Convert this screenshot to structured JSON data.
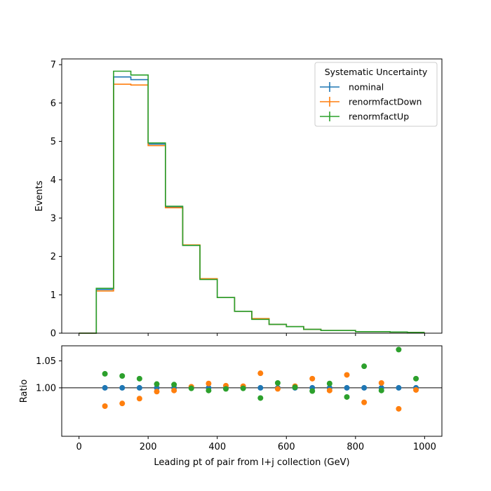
{
  "chart_data": [
    {
      "type": "line",
      "drawstyle": "step",
      "xlabel": "",
      "ylabel": "Events",
      "xlim": [
        -50,
        1050
      ],
      "ylim": [
        0,
        7.15
      ],
      "yticks": [
        0,
        1,
        2,
        3,
        4,
        5,
        6,
        7
      ],
      "bin_edges": [
        0,
        50,
        100,
        150,
        200,
        250,
        300,
        350,
        400,
        450,
        500,
        550,
        600,
        650,
        700,
        750,
        800,
        850,
        900,
        950,
        1000
      ],
      "legend": {
        "title": "Systematic Uncertainty",
        "location": "top-right"
      },
      "series": [
        {
          "name": "nominal",
          "color": "#1f77b4",
          "values": [
            0.0,
            1.14,
            6.68,
            6.61,
            4.93,
            3.29,
            2.29,
            1.41,
            0.93,
            0.57,
            0.37,
            0.23,
            0.17,
            0.1,
            0.07,
            0.07,
            0.04,
            0.04,
            0.03,
            0.02
          ]
        },
        {
          "name": "renormfactDown",
          "color": "#ff7f0e",
          "values": [
            0.0,
            1.1,
            6.49,
            6.47,
            4.89,
            3.27,
            2.3,
            1.42,
            0.93,
            0.57,
            0.38,
            0.23,
            0.17,
            0.1,
            0.07,
            0.07,
            0.04,
            0.04,
            0.03,
            0.02
          ]
        },
        {
          "name": "renormfactUp",
          "color": "#2ca02c",
          "values": [
            0.0,
            1.17,
            6.83,
            6.73,
            4.96,
            3.31,
            2.29,
            1.4,
            0.93,
            0.57,
            0.36,
            0.23,
            0.17,
            0.1,
            0.07,
            0.07,
            0.04,
            0.04,
            0.03,
            0.02
          ]
        }
      ]
    },
    {
      "type": "scatter",
      "xlabel": "Leading pt of pair from l+j collection (GeV)",
      "ylabel": "Ratio",
      "xlim": [
        -50,
        1050
      ],
      "ylim": [
        0.91,
        1.078
      ],
      "xticks": [
        0,
        200,
        400,
        600,
        800,
        1000
      ],
      "yticks": [
        1.0,
        1.05
      ],
      "ytick_labels": [
        "1.00",
        "1.05"
      ],
      "reference_line": 1.0,
      "x": [
        75,
        125,
        175,
        225,
        275,
        325,
        375,
        425,
        475,
        525,
        575,
        625,
        675,
        725,
        775,
        825,
        875,
        925,
        975
      ],
      "series": [
        {
          "name": "nominal",
          "color": "#1f77b4",
          "values": [
            1.0,
            1.0,
            1.0,
            1.0,
            1.0,
            1.0,
            1.0,
            1.0,
            1.0,
            1.0,
            1.0,
            1.0,
            1.0,
            1.0,
            1.0,
            1.0,
            1.0,
            1.0,
            1.0
          ]
        },
        {
          "name": "renormfactDown",
          "color": "#ff7f0e",
          "values": [
            0.966,
            0.971,
            0.98,
            0.993,
            0.995,
            1.002,
            1.008,
            1.004,
            1.003,
            1.027,
            0.998,
            1.003,
            1.017,
            0.995,
            1.024,
            0.973,
            1.009,
            0.961,
            0.996
          ]
        },
        {
          "name": "renormfactUp",
          "color": "#2ca02c",
          "values": [
            1.026,
            1.022,
            1.017,
            1.007,
            1.006,
            0.999,
            0.995,
            0.998,
            0.999,
            0.981,
            1.009,
            1.001,
            0.994,
            1.008,
            0.983,
            1.04,
            0.995,
            1.071,
            1.017
          ]
        }
      ]
    }
  ]
}
